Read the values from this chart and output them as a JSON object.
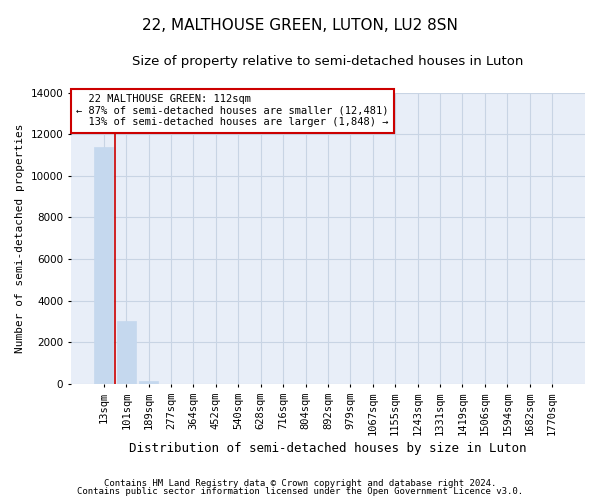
{
  "title1": "22, MALTHOUSE GREEN, LUTON, LU2 8SN",
  "title2": "Size of property relative to semi-detached houses in Luton",
  "xlabel": "Distribution of semi-detached houses by size in Luton",
  "ylabel": "Number of semi-detached properties",
  "bar_categories": [
    "13sqm",
    "101sqm",
    "189sqm",
    "277sqm",
    "364sqm",
    "452sqm",
    "540sqm",
    "628sqm",
    "716sqm",
    "804sqm",
    "892sqm",
    "979sqm",
    "1067sqm",
    "1155sqm",
    "1243sqm",
    "1331sqm",
    "1419sqm",
    "1506sqm",
    "1594sqm",
    "1682sqm",
    "1770sqm"
  ],
  "bar_values": [
    11400,
    3000,
    150,
    0,
    0,
    0,
    0,
    0,
    0,
    0,
    0,
    0,
    0,
    0,
    0,
    0,
    0,
    0,
    0,
    0,
    0
  ],
  "bar_color": "#c5d8ee",
  "bar_edgecolor": "#c5d8ee",
  "grid_color": "#c8d4e4",
  "background_color": "#e8eef8",
  "ylim": [
    0,
    14000
  ],
  "yticks": [
    0,
    2000,
    4000,
    6000,
    8000,
    10000,
    12000,
    14000
  ],
  "property_label": "22 MALTHOUSE GREEN: 112sqm",
  "pct_smaller": 87,
  "count_smaller": "12,481",
  "pct_larger": 13,
  "count_larger": "1,848",
  "annotation_box_color": "#cc0000",
  "vline_color": "#cc0000",
  "vline_x": 0.5,
  "footer1": "Contains HM Land Registry data © Crown copyright and database right 2024.",
  "footer2": "Contains public sector information licensed under the Open Government Licence v3.0.",
  "title1_fontsize": 11,
  "title2_fontsize": 9.5,
  "xlabel_fontsize": 9,
  "ylabel_fontsize": 8,
  "tick_fontsize": 7.5,
  "annot_fontsize": 7.5,
  "footer_fontsize": 6.5
}
